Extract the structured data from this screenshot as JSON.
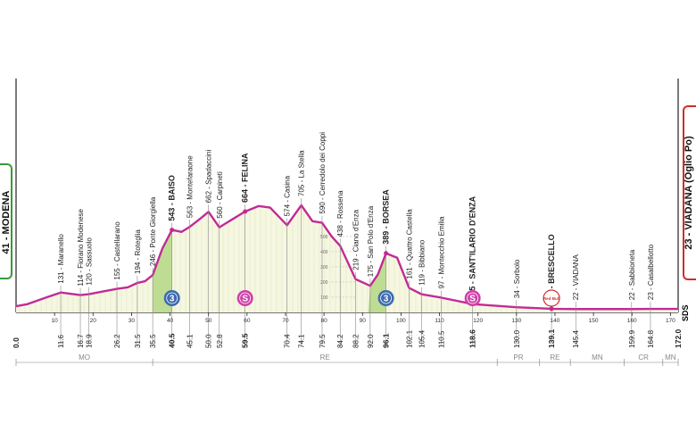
{
  "stage": {
    "start": "41 - MODENA",
    "finish": "23 - VIADANA (Oglio Po)",
    "unit_mark": "SDS"
  },
  "chart_data": {
    "type": "area",
    "title": "",
    "xlabel": "",
    "ylabel": "",
    "xlim": [
      0,
      172
    ],
    "ylim": [
      0,
      600
    ],
    "elevation_ticks": [
      100,
      200,
      300,
      400,
      500
    ],
    "axis_ticks": [
      10,
      20,
      30,
      40,
      50,
      60,
      70,
      80,
      90,
      100,
      110,
      120,
      130,
      140,
      150,
      160,
      170
    ],
    "profile": [
      {
        "x": 0,
        "y": 41
      },
      {
        "x": 3,
        "y": 55
      },
      {
        "x": 8,
        "y": 100
      },
      {
        "x": 11.6,
        "y": 131
      },
      {
        "x": 16.7,
        "y": 114
      },
      {
        "x": 18.9,
        "y": 120
      },
      {
        "x": 23,
        "y": 140
      },
      {
        "x": 26.2,
        "y": 155
      },
      {
        "x": 29,
        "y": 165
      },
      {
        "x": 31.5,
        "y": 194
      },
      {
        "x": 33.5,
        "y": 205
      },
      {
        "x": 35.5,
        "y": 246
      },
      {
        "x": 38,
        "y": 420
      },
      {
        "x": 40.5,
        "y": 543
      },
      {
        "x": 43,
        "y": 530
      },
      {
        "x": 45.1,
        "y": 563
      },
      {
        "x": 48,
        "y": 620
      },
      {
        "x": 50,
        "y": 662
      },
      {
        "x": 52.8,
        "y": 560
      },
      {
        "x": 56,
        "y": 610
      },
      {
        "x": 59.5,
        "y": 664
      },
      {
        "x": 63,
        "y": 700
      },
      {
        "x": 66,
        "y": 690
      },
      {
        "x": 70.4,
        "y": 574
      },
      {
        "x": 74.1,
        "y": 705
      },
      {
        "x": 77,
        "y": 600
      },
      {
        "x": 79.5,
        "y": 590
      },
      {
        "x": 82,
        "y": 500
      },
      {
        "x": 84.2,
        "y": 438
      },
      {
        "x": 88.2,
        "y": 219
      },
      {
        "x": 92,
        "y": 175
      },
      {
        "x": 94,
        "y": 250
      },
      {
        "x": 96.1,
        "y": 389
      },
      {
        "x": 99,
        "y": 360
      },
      {
        "x": 102.1,
        "y": 161
      },
      {
        "x": 105.4,
        "y": 119
      },
      {
        "x": 110.5,
        "y": 97
      },
      {
        "x": 118.6,
        "y": 55
      },
      {
        "x": 130,
        "y": 34
      },
      {
        "x": 139.1,
        "y": 24
      },
      {
        "x": 145.4,
        "y": 22
      },
      {
        "x": 159.9,
        "y": 22
      },
      {
        "x": 164.8,
        "y": 23
      },
      {
        "x": 172,
        "y": 23
      }
    ],
    "climbs": [
      {
        "from": 35.5,
        "to": 40.5,
        "color": "#b8d98a"
      },
      {
        "from": 91.5,
        "to": 96.1,
        "color": "#b8d98a"
      }
    ],
    "places": [
      {
        "km": "11.6",
        "label": "131 - Maranello",
        "bold": false
      },
      {
        "km": "16.7",
        "label": "114 - Fiorano Modenese",
        "bold": false
      },
      {
        "km": "18.9",
        "label": "120 - Sassuolo",
        "bold": false
      },
      {
        "km": "26.2",
        "label": "155 - Castellarano",
        "bold": false
      },
      {
        "km": "31.5",
        "label": "194 - Roteglia",
        "bold": false
      },
      {
        "km": "35.5",
        "label": "246 - Ponte Giorgiella",
        "bold": false
      },
      {
        "km": "40.5",
        "label": "543 - BAISO",
        "bold": true
      },
      {
        "km": "45.1",
        "label": "563 - Montefaraone",
        "bold": false
      },
      {
        "km": "50.0",
        "label": "662 - Spadaccini",
        "bold": false
      },
      {
        "km": "52.8",
        "label": "560 - Carpineti",
        "bold": false
      },
      {
        "km": "59.5",
        "label": "664 - FELINA",
        "bold": true
      },
      {
        "km": "70.4",
        "label": "574 - Casina",
        "bold": false
      },
      {
        "km": "74.1",
        "label": "705 - La Stella",
        "bold": false
      },
      {
        "km": "79.5",
        "label": "590 - Cerredolo dei Coppi",
        "bold": false
      },
      {
        "km": "84.2",
        "label": "438 - Rossena",
        "bold": false
      },
      {
        "km": "88.2",
        "label": "219 - Ciano d'Enza",
        "bold": false
      },
      {
        "km": "92.0",
        "label": "175 - San Polo d'Enza",
        "bold": false
      },
      {
        "km": "96.1",
        "label": "389 - BORSEA",
        "bold": true
      },
      {
        "km": "102.1",
        "label": "161 - Quattro Castella",
        "bold": false
      },
      {
        "km": "105.4",
        "label": "119 - Bibbiano",
        "bold": false
      },
      {
        "km": "110.5",
        "label": "97 - Montecchio Emilia",
        "bold": false
      },
      {
        "km": "118.6",
        "label": "55 - SANT'ILARIO D'ENZA",
        "bold": true
      },
      {
        "km": "130.0",
        "label": "34 - Sorbolo",
        "bold": false
      },
      {
        "km": "139.1",
        "label": "24 - BRESCELLO",
        "bold": true
      },
      {
        "km": "145.4",
        "label": "22 - VIADANA",
        "bold": false
      },
      {
        "km": "159.9",
        "label": "22 - Sabbioneta",
        "bold": false
      },
      {
        "km": "164.8",
        "label": "23 - Casalbellotto",
        "bold": false
      }
    ],
    "badges": [
      {
        "km": 40.5,
        "text": "3",
        "kind": "gpm",
        "color": "#3d6ab0"
      },
      {
        "km": 59.5,
        "text": "S",
        "kind": "sprint",
        "color": "#cf3fa8"
      },
      {
        "km": 96.1,
        "text": "3",
        "kind": "gpm",
        "color": "#3d6ab0"
      },
      {
        "km": 118.6,
        "text": "S",
        "kind": "sprint",
        "color": "#cf3fa8"
      },
      {
        "km": 139.1,
        "text": "Red Bull",
        "kind": "kom-bonus",
        "color": "#d52b2b"
      }
    ],
    "start_km": "0.0",
    "finish_km": "172.0",
    "regions": [
      {
        "from": 0,
        "to": 35.5,
        "label": "MO"
      },
      {
        "from": 35.5,
        "to": 125,
        "label": "RE"
      },
      {
        "from": 125,
        "to": 136,
        "label": "PR"
      },
      {
        "from": 136,
        "to": 144,
        "label": "RE"
      },
      {
        "from": 144,
        "to": 158,
        "label": "MN"
      },
      {
        "from": 158,
        "to": 168,
        "label": "CR"
      },
      {
        "from": 168,
        "to": 172,
        "label": "MN"
      }
    ]
  }
}
